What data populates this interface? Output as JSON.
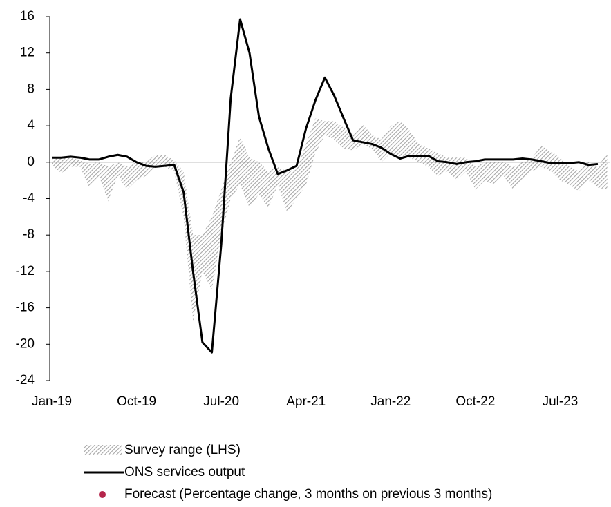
{
  "chart_data": {
    "type": "line",
    "categories": [
      "Jan-19",
      null,
      null,
      null,
      null,
      null,
      null,
      null,
      null,
      "Oct-19",
      null,
      null,
      null,
      null,
      null,
      null,
      null,
      null,
      "Jul-20",
      null,
      null,
      null,
      null,
      null,
      null,
      null,
      null,
      "Apr-21",
      null,
      null,
      null,
      null,
      null,
      null,
      null,
      null,
      "Jan-22",
      null,
      null,
      null,
      null,
      null,
      null,
      null,
      null,
      "Oct-22",
      null,
      null,
      null,
      null,
      null,
      null,
      null,
      null,
      "Jul-23",
      null,
      null,
      null,
      null,
      null
    ],
    "ylim": [
      -24,
      16
    ],
    "yticks": [
      -24,
      -20,
      -16,
      -12,
      -8,
      -4,
      0,
      4,
      8,
      12,
      16
    ],
    "range": {
      "name": "Survey range (LHS)",
      "color": "#a6a6a6",
      "low": [
        -0.3,
        -1.2,
        -0.5,
        -0.5,
        -2.8,
        -1.5,
        -4.3,
        -1.5,
        -3,
        -2,
        -1.5,
        -0.5,
        -0.5,
        -1,
        -6,
        -17.5,
        -12,
        -14,
        -8,
        -4,
        -2.5,
        -5,
        -3.5,
        -5,
        -2.5,
        -5.5,
        -4,
        -2.5,
        1,
        3,
        2.5,
        1.5,
        1.3,
        2,
        1.5,
        0,
        1,
        0.5,
        0.5,
        0,
        -0.5,
        -1.5,
        -1,
        -2,
        -1,
        -3,
        -2,
        -2.5,
        -1.5,
        -3,
        -2,
        -1,
        -0.5,
        -1,
        -2,
        -2.5,
        -3.2,
        -2,
        -2.8,
        -3
      ],
      "high": [
        0.3,
        0.5,
        0.5,
        0.2,
        -0.2,
        0,
        -0.5,
        0,
        -0.5,
        0,
        0,
        0.8,
        0.8,
        0.2,
        -1,
        -8,
        -8,
        -6,
        -3,
        0,
        2.8,
        0.5,
        0,
        -1,
        -0.5,
        -1,
        -0.8,
        2,
        4.8,
        4.5,
        4.5,
        3.8,
        3,
        4.2,
        3,
        2.5,
        4,
        4.5,
        3.5,
        2,
        1.5,
        1,
        0.5,
        0.5,
        0.5,
        -0.5,
        0,
        0,
        0,
        -0.5,
        0,
        0.5,
        1.8,
        1.2,
        0.5,
        -0.5,
        -1,
        0,
        -0.5,
        1
      ]
    },
    "series": [
      {
        "name": "ONS services output",
        "color": "#000000",
        "values": [
          0.5,
          0.5,
          0.6,
          0.5,
          0.3,
          0.3,
          0.6,
          0.8,
          0.6,
          0,
          -0.4,
          -0.5,
          -0.4,
          -0.3,
          -3.3,
          -12,
          -19.8,
          -20.9,
          -9,
          7,
          15.7,
          12,
          5,
          1.5,
          -1.3,
          -0.9,
          -0.4,
          3.7,
          6.8,
          9.3,
          7.3,
          4.8,
          2.4,
          2.2,
          2,
          1.6,
          0.9,
          0.4,
          0.7,
          0.7,
          0.7,
          0.1,
          0,
          -0.2,
          0,
          0.1,
          0.3,
          0.3,
          0.3,
          0.3,
          0.4,
          0.3,
          0.1,
          -0.1,
          -0.1,
          -0.1,
          0,
          -0.3,
          -0.2,
          null
        ]
      },
      {
        "name": "Forecast (Percentage change, 3 months on previous 3 months)",
        "color": "#b5264c",
        "values": [
          null,
          null,
          null,
          null,
          null,
          null,
          null,
          null,
          null,
          null,
          null,
          null,
          null,
          null,
          null,
          null,
          null,
          null,
          null,
          null,
          null,
          null,
          null,
          null,
          null,
          null,
          null,
          null,
          null,
          null,
          null,
          null,
          null,
          null,
          null,
          null,
          null,
          null,
          null,
          null,
          null,
          null,
          null,
          null,
          null,
          null,
          null,
          null,
          null,
          null,
          null,
          null,
          null,
          null,
          null,
          null,
          null,
          null,
          null,
          null
        ]
      }
    ]
  }
}
